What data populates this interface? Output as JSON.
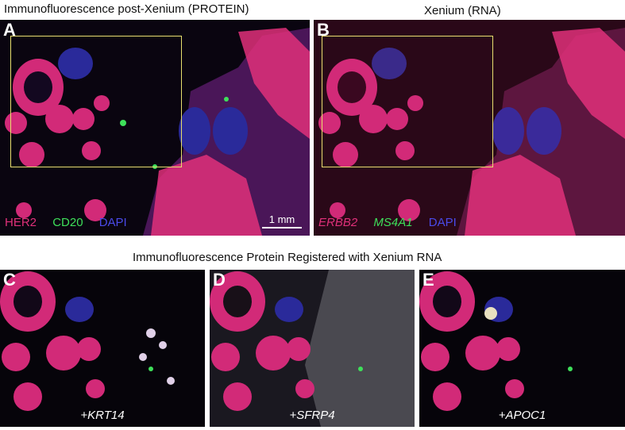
{
  "titles": {
    "panel_a": "Immunofluorescence post-Xenium (PROTEIN)",
    "panel_b": "Xenium (RNA)",
    "bottom_row": "Immunofluorescence Protein Registered with Xenium RNA"
  },
  "panels": {
    "a": {
      "letter": "A",
      "legend": [
        "HER2",
        "CD20",
        "DAPI"
      ],
      "scalebar": "1 mm"
    },
    "b": {
      "letter": "B",
      "legend": [
        "ERBB2",
        "MS4A1",
        "DAPI"
      ]
    },
    "c": {
      "letter": "C",
      "gene": "+KRT14"
    },
    "d": {
      "letter": "D",
      "gene": "+SFRP4"
    },
    "e": {
      "letter": "E",
      "gene": "+APOC1"
    }
  },
  "colors": {
    "her2": "#e0307a",
    "cd20": "#3ee05a",
    "dapi": "#3a3ae0",
    "roi_box": "#e8df6e"
  }
}
